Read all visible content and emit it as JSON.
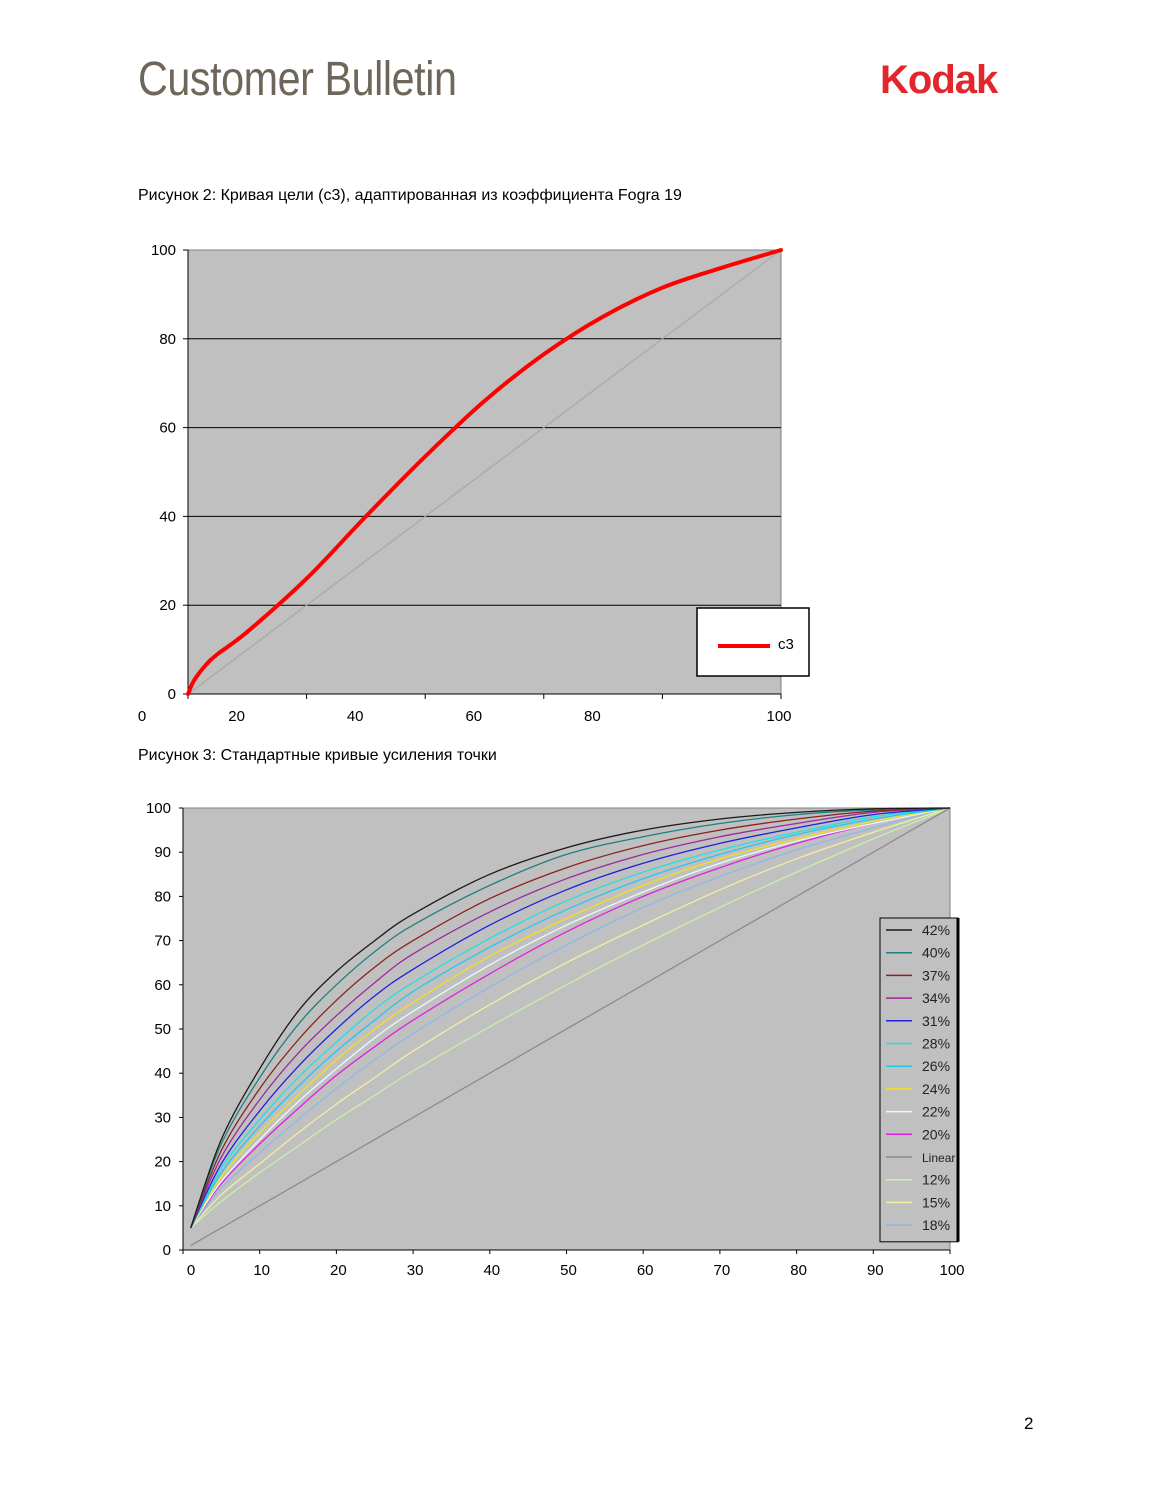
{
  "header": {
    "title": "Customer Bulletin",
    "logo_text": "Kodak",
    "logo_color": "#e3262b"
  },
  "captions": {
    "figure2": "Рисунок 2: Кривая цели (c3), адаптированная из коэффициента Fogra 19",
    "figure3": "Рисунок 3: Стандартные кривые усиления точки"
  },
  "page_number": "2",
  "chart_data": [
    {
      "type": "line",
      "title": "",
      "xlabel": "",
      "ylabel": "",
      "xlim": [
        0,
        100
      ],
      "ylim": [
        0,
        100
      ],
      "x_ticks": [
        0,
        20,
        40,
        60,
        80,
        100
      ],
      "y_ticks": [
        0,
        20,
        40,
        60,
        80,
        100
      ],
      "grid": "horizontal",
      "background": "#c0c0c0",
      "legend": "bottom-right",
      "series": [
        {
          "name": "c3",
          "color": "#ff0000",
          "x": [
            0,
            1,
            3,
            5,
            10,
            20,
            30,
            40,
            50,
            60,
            70,
            80,
            90,
            100
          ],
          "y": [
            0,
            3,
            6.5,
            9,
            14,
            26,
            40,
            53.5,
            66,
            76.5,
            85,
            91.5,
            96,
            100
          ]
        },
        {
          "name": "",
          "color": "#a8a8a8",
          "x": [
            0,
            100
          ],
          "y": [
            0,
            100
          ]
        }
      ]
    },
    {
      "type": "line",
      "title": "",
      "xlabel": "",
      "ylabel": "",
      "xlim": [
        0,
        100
      ],
      "ylim": [
        0,
        100
      ],
      "x_ticks": [
        0,
        10,
        20,
        30,
        40,
        50,
        60,
        70,
        80,
        90,
        100
      ],
      "y_ticks": [
        0,
        10,
        20,
        30,
        40,
        50,
        60,
        70,
        80,
        90,
        100
      ],
      "grid": "none",
      "background": "#c0c0c0",
      "legend": "right",
      "x": [
        1,
        5,
        10,
        15,
        20,
        25,
        30,
        40,
        50,
        60,
        70,
        80,
        90,
        100
      ],
      "series": [
        {
          "name": "42%",
          "color": "#1a1a1a",
          "y": [
            5,
            25,
            41,
            54,
            63,
            70,
            76,
            85,
            91,
            95,
            97.5,
            99,
            99.8,
            100
          ]
        },
        {
          "name": "40%",
          "color": "#1f8080",
          "y": [
            5,
            24,
            39,
            51,
            60,
            67.5,
            73.5,
            82.5,
            89.5,
            93.5,
            96.5,
            98.5,
            99.6,
            100
          ]
        },
        {
          "name": "37%",
          "color": "#8b2020",
          "y": [
            5,
            22.5,
            36.5,
            47.5,
            56.5,
            64,
            70,
            79.5,
            86.5,
            91.5,
            95,
            97.5,
            99.3,
            100
          ]
        },
        {
          "name": "34%",
          "color": "#9b2a9b",
          "y": [
            5,
            21,
            34,
            44.5,
            53,
            60.5,
            67,
            76.5,
            84,
            89.5,
            93.5,
            96.5,
            99,
            100
          ]
        },
        {
          "name": "31%",
          "color": "#2020dd",
          "y": [
            5,
            19.5,
            31.5,
            41.5,
            50,
            57.5,
            63.5,
            73.5,
            81.5,
            87.5,
            92,
            95.5,
            98.5,
            100
          ]
        },
        {
          "name": "28%",
          "color": "#22e0e0",
          "y": [
            5,
            18.5,
            29.5,
            39,
            47,
            54.5,
            60.5,
            70.5,
            79,
            85.5,
            90.5,
            94.5,
            98,
            100
          ]
        },
        {
          "name": "26%",
          "color": "#22c8f0",
          "y": [
            5,
            17.5,
            28,
            37,
            45,
            52,
            58.5,
            68.5,
            77,
            84,
            89.5,
            94,
            97.5,
            100
          ]
        },
        {
          "name": "24%",
          "color": "#f0e020",
          "y": [
            5,
            16.5,
            26.5,
            35,
            43,
            50,
            56,
            66.5,
            75,
            82.5,
            88.5,
            93,
            97,
            100
          ]
        },
        {
          "name": "22%",
          "color": "#e8fafa",
          "y": [
            5,
            15.5,
            25,
            33.5,
            41,
            48,
            54,
            64.5,
            73.5,
            81,
            87.5,
            92.5,
            96.5,
            100
          ]
        },
        {
          "name": "20%",
          "color": "#e020e0",
          "y": [
            5,
            15,
            24,
            32,
            39.5,
            46,
            52,
            62.5,
            72,
            80,
            86.5,
            92,
            96.5,
            100
          ]
        },
        {
          "name": "Linear",
          "color": "#8c8c8c",
          "y": [
            1,
            5,
            10,
            15,
            20,
            25,
            30,
            40,
            50,
            60,
            70,
            80,
            90,
            100
          ]
        },
        {
          "name": "12%",
          "color": "#c8f0a8",
          "y": [
            5,
            11,
            17.5,
            23.5,
            29.5,
            35,
            40.5,
            50.5,
            60,
            69,
            77.5,
            85.5,
            93,
            100
          ]
        },
        {
          "name": "15%",
          "color": "#f0f0a0",
          "y": [
            5,
            12.5,
            19.5,
            26.5,
            33,
            39,
            45,
            55.5,
            65,
            73.5,
            81.5,
            88.5,
            94.5,
            100
          ]
        },
        {
          "name": "18%",
          "color": "#90b8e8",
          "y": [
            5,
            14,
            22,
            29.5,
            36.5,
            43,
            49,
            59.5,
            69,
            77.5,
            84.5,
            90.5,
            95.5,
            100
          ]
        }
      ]
    }
  ]
}
